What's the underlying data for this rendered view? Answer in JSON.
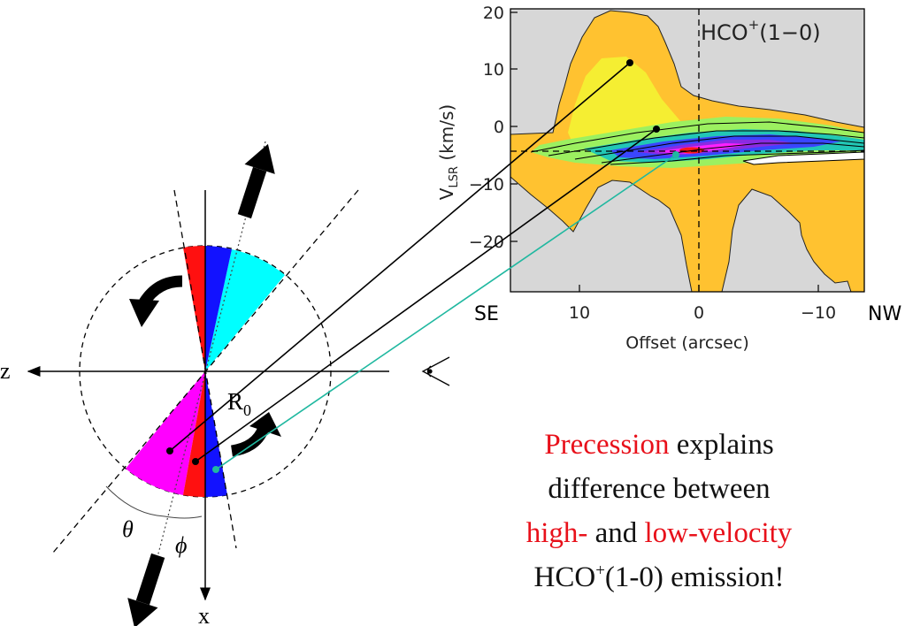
{
  "colors": {
    "red": "#ff1010",
    "blue": "#1212ff",
    "cyan": "#00ffff",
    "magenta": "#ff00ff",
    "teal_line": "#20b8a0",
    "caption_red": "#e8101a"
  },
  "pv_plot": {
    "label_main": "HCO",
    "label_sup": "+",
    "label_rest": "(1−0)",
    "ylabel_main": "V",
    "ylabel_sub": "LSR",
    "ylabel_rest": " (km/s)",
    "xlabel": "Offset (arcsec)",
    "yticks": [
      "20",
      "10",
      "0",
      "−10",
      "−20"
    ],
    "xticks": [
      "10",
      "0",
      "−10"
    ],
    "left_label": "SE",
    "right_label": "NW"
  },
  "schematic": {
    "axis_z": "z",
    "axis_x": "x",
    "r0_main": "R",
    "r0_sub": "0",
    "theta": "θ",
    "phi": "ϕ",
    "eye_icon": "eye-icon"
  },
  "caption": {
    "line1_red": "Precession",
    "line1_rest": " explains",
    "line2": "difference between",
    "line3_red1": "high-",
    "line3_mid": " and ",
    "line3_red2": "low-velocity",
    "line4_pre": "HCO",
    "line4_sup": "+",
    "line4_rest": "(1-0) emission!"
  }
}
